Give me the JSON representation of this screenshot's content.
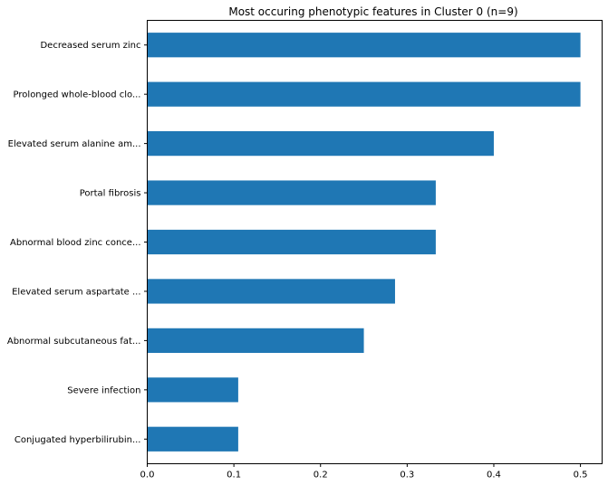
{
  "chart_data": {
    "type": "bar",
    "orientation": "horizontal",
    "title": "Most occuring phenotypic features in Cluster 0 (n=9)",
    "xlabel": "",
    "ylabel": "",
    "categories": [
      "Decreased serum zinc",
      "Prolonged whole-blood clo...",
      "Elevated serum alanine am...",
      "Portal fibrosis",
      "Abnormal blood zinc conce...",
      "Elevated serum aspartate ...",
      "Abnormal subcutaneous fat...",
      "Severe infection",
      "Conjugated hyperbilirubin..."
    ],
    "values": [
      0.5,
      0.5,
      0.4,
      0.333,
      0.333,
      0.286,
      0.25,
      0.105,
      0.105
    ],
    "xlim": [
      0,
      0.525
    ],
    "xticks": [
      0.0,
      0.1,
      0.2,
      0.3,
      0.4,
      0.5
    ],
    "xtick_labels": [
      "0.0",
      "0.1",
      "0.2",
      "0.3",
      "0.4",
      "0.5"
    ],
    "bar_color": "#1f77b4",
    "grid": false,
    "legend": "none"
  }
}
